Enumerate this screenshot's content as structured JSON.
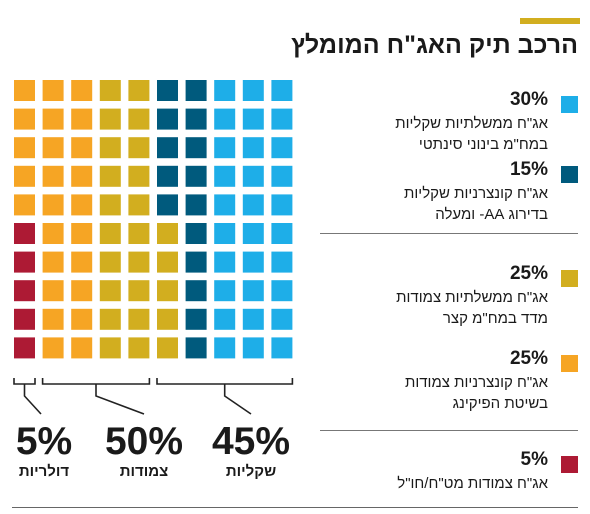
{
  "title": "הרכב תיק האג\"ח המומלץ",
  "colors": {
    "accent": "#d2ae1f",
    "light_blue": "#1eaee8",
    "dark_blue": "#005a7d",
    "mustard": "#d2ae1f",
    "orange": "#f6a524",
    "red": "#ad1a34"
  },
  "chart_data": {
    "type": "waffle",
    "grid": {
      "rows": 10,
      "cols": 10,
      "unit_percent": 1
    },
    "title": "הרכב תיק האג\"ח המומלץ",
    "series": [
      {
        "name": "אג\"ח ממשלתיות שקליות במח\"מ בינוני סינתטי",
        "value": 30,
        "color": "#1eaee8"
      },
      {
        "name": "אג\"ח קונצרניות שקליות בדירוג AA- ומעלה",
        "value": 15,
        "color": "#005a7d"
      },
      {
        "name": "אג\"ח ממשלתיות צמודות מדד במח\"מ קצר",
        "value": 25,
        "color": "#d2ae1f"
      },
      {
        "name": "אג\"ח קונצרניות צמודות בשיטת הפיקינג",
        "value": 25,
        "color": "#f6a524"
      },
      {
        "name": "אג\"ח צמודות מט\"ח/חו\"ל",
        "value": 5,
        "color": "#ad1a34"
      }
    ],
    "groups": [
      {
        "pct": "45%",
        "label": "שקליות"
      },
      {
        "pct": "50%",
        "label": "צמודות"
      },
      {
        "pct": "5%",
        "label": "דולריות"
      }
    ]
  },
  "legend": [
    {
      "pct": "30%",
      "line1": "אג\"ח ממשלתיות שקליות",
      "line2": "במח\"מ בינוני סינתטי"
    },
    {
      "pct": "15%",
      "line1": "אג\"ח קונצרניות שקליות",
      "line2": "בדירוג AA- ומעלה"
    },
    {
      "pct": "25%",
      "line1": "אג\"ח ממשלתיות צמודות",
      "line2": "מדד במח\"מ קצר"
    },
    {
      "pct": "25%",
      "line1": "אג\"ח קונצרניות צמודות",
      "line2": "בשיטת הפיקינג"
    },
    {
      "pct": "5%",
      "line1": "אג\"ח צמודות מט\"ח/חו\"ל",
      "line2": ""
    }
  ]
}
